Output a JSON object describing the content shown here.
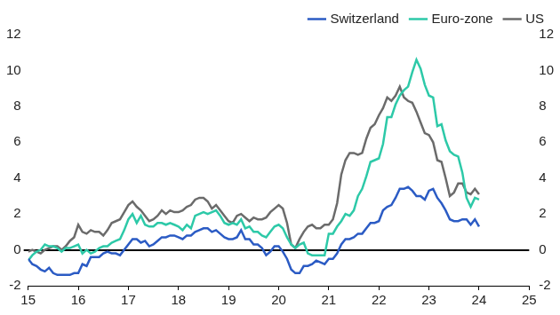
{
  "chart_data": {
    "type": "line",
    "x": [
      15,
      15.083,
      15.167,
      15.25,
      15.333,
      15.417,
      15.5,
      15.583,
      15.667,
      15.75,
      15.833,
      15.917,
      16,
      16.083,
      16.167,
      16.25,
      16.333,
      16.417,
      16.5,
      16.583,
      16.667,
      16.75,
      16.833,
      16.917,
      17,
      17.083,
      17.167,
      17.25,
      17.333,
      17.417,
      17.5,
      17.583,
      17.667,
      17.75,
      17.833,
      17.917,
      18,
      18.083,
      18.167,
      18.25,
      18.333,
      18.417,
      18.5,
      18.583,
      18.667,
      18.75,
      18.833,
      18.917,
      19,
      19.083,
      19.167,
      19.25,
      19.333,
      19.417,
      19.5,
      19.583,
      19.667,
      19.75,
      19.833,
      19.917,
      20,
      20.083,
      20.167,
      20.25,
      20.333,
      20.417,
      20.5,
      20.583,
      20.667,
      20.75,
      20.833,
      20.917,
      21,
      21.083,
      21.167,
      21.25,
      21.333,
      21.417,
      21.5,
      21.583,
      21.667,
      21.75,
      21.833,
      21.917,
      22,
      22.083,
      22.167,
      22.25,
      22.333,
      22.417,
      22.5,
      22.583,
      22.667,
      22.75,
      22.833,
      22.917,
      23,
      23.083,
      23.167,
      23.25,
      23.333,
      23.417,
      23.5,
      23.583,
      23.667,
      23.75,
      23.833,
      23.917,
      24
    ],
    "series": [
      {
        "name": "Switzerland",
        "color": "#2b5bc4",
        "values": [
          -0.5,
          -0.8,
          -0.9,
          -1.1,
          -1.2,
          -1.0,
          -1.3,
          -1.4,
          -1.4,
          -1.4,
          -1.4,
          -1.3,
          -1.3,
          -0.8,
          -0.9,
          -0.4,
          -0.4,
          -0.4,
          -0.2,
          -0.1,
          -0.2,
          -0.2,
          -0.3,
          0.0,
          0.3,
          0.6,
          0.6,
          0.4,
          0.5,
          0.2,
          0.3,
          0.5,
          0.7,
          0.7,
          0.8,
          0.8,
          0.7,
          0.6,
          0.8,
          0.8,
          1.0,
          1.1,
          1.2,
          1.2,
          1.0,
          1.1,
          0.9,
          0.7,
          0.6,
          0.6,
          0.7,
          1.1,
          0.6,
          0.6,
          0.3,
          0.3,
          0.1,
          -0.3,
          -0.1,
          0.2,
          0.2,
          -0.1,
          -0.5,
          -1.1,
          -1.3,
          -1.3,
          -0.9,
          -0.9,
          -0.8,
          -0.6,
          -0.7,
          -0.8,
          -0.5,
          -0.5,
          -0.2,
          0.3,
          0.6,
          0.6,
          0.7,
          0.9,
          0.9,
          1.2,
          1.5,
          1.5,
          1.6,
          2.2,
          2.4,
          2.5,
          2.9,
          3.4,
          3.4,
          3.5,
          3.3,
          3.0,
          3.0,
          2.8,
          3.3,
          3.4,
          2.9,
          2.6,
          2.2,
          1.7,
          1.6,
          1.6,
          1.7,
          1.7,
          1.4,
          1.7,
          1.3
        ]
      },
      {
        "name": "Euro-zone",
        "color": "#2dc9a8",
        "values": [
          -0.6,
          -0.3,
          -0.1,
          0.0,
          0.3,
          0.2,
          0.2,
          0.1,
          -0.1,
          0.1,
          0.1,
          0.2,
          0.3,
          -0.2,
          0.0,
          -0.2,
          -0.1,
          0.1,
          0.2,
          0.2,
          0.4,
          0.5,
          0.6,
          1.1,
          1.7,
          2.0,
          1.5,
          1.9,
          1.4,
          1.3,
          1.3,
          1.5,
          1.5,
          1.4,
          1.5,
          1.4,
          1.3,
          1.1,
          1.4,
          1.2,
          1.9,
          2.0,
          2.1,
          2.0,
          2.1,
          2.2,
          1.9,
          1.5,
          1.4,
          1.5,
          1.4,
          1.7,
          1.2,
          1.3,
          1.0,
          1.0,
          0.8,
          0.7,
          1.0,
          1.3,
          1.4,
          1.2,
          0.7,
          0.3,
          0.1,
          0.3,
          0.4,
          -0.2,
          -0.3,
          -0.3,
          -0.3,
          -0.3,
          0.9,
          0.9,
          1.3,
          1.6,
          2.0,
          1.9,
          2.2,
          3.0,
          3.4,
          4.1,
          4.9,
          5.0,
          5.1,
          5.9,
          7.4,
          7.4,
          8.1,
          8.6,
          8.9,
          9.1,
          9.9,
          10.6,
          10.1,
          9.2,
          8.6,
          8.5,
          6.9,
          7.0,
          6.1,
          5.5,
          5.3,
          5.2,
          4.3,
          2.9,
          2.4,
          2.9,
          2.8
        ]
      },
      {
        "name": "US",
        "color": "#6b6b6b",
        "values": [
          -0.1,
          0.0,
          -0.1,
          -0.2,
          0.0,
          0.1,
          0.2,
          0.2,
          0.0,
          0.2,
          0.5,
          0.7,
          1.4,
          1.0,
          0.9,
          1.1,
          1.0,
          1.0,
          0.8,
          1.1,
          1.5,
          1.6,
          1.7,
          2.1,
          2.5,
          2.7,
          2.4,
          2.2,
          1.9,
          1.6,
          1.7,
          1.9,
          2.2,
          2.0,
          2.2,
          2.1,
          2.1,
          2.2,
          2.4,
          2.5,
          2.8,
          2.9,
          2.9,
          2.7,
          2.3,
          2.5,
          2.2,
          1.9,
          1.6,
          1.5,
          1.9,
          2.0,
          1.8,
          1.6,
          1.8,
          1.7,
          1.7,
          1.8,
          2.1,
          2.3,
          2.5,
          2.3,
          1.5,
          0.3,
          0.1,
          0.6,
          1.0,
          1.3,
          1.4,
          1.2,
          1.2,
          1.4,
          1.4,
          1.7,
          2.6,
          4.2,
          5.0,
          5.4,
          5.4,
          5.3,
          5.4,
          6.2,
          6.8,
          7.0,
          7.5,
          7.9,
          8.5,
          8.3,
          8.6,
          9.1,
          8.5,
          8.3,
          8.2,
          7.7,
          7.1,
          6.5,
          6.4,
          6.0,
          5.0,
          4.9,
          4.0,
          3.0,
          3.2,
          3.7,
          3.7,
          3.2,
          3.1,
          3.4,
          3.1
        ]
      }
    ],
    "xlim": [
      15,
      25
    ],
    "xticks": [
      15,
      16,
      17,
      18,
      19,
      20,
      21,
      22,
      23,
      24,
      25
    ],
    "ylim": [
      -2,
      12
    ],
    "yticks": [
      -2,
      0,
      2,
      4,
      6,
      8,
      10,
      12
    ],
    "y2lim": [
      -2,
      12
    ],
    "y2ticks": [
      -2,
      0,
      2,
      4,
      6,
      8,
      10,
      12
    ],
    "grid": false,
    "legend": "top"
  }
}
